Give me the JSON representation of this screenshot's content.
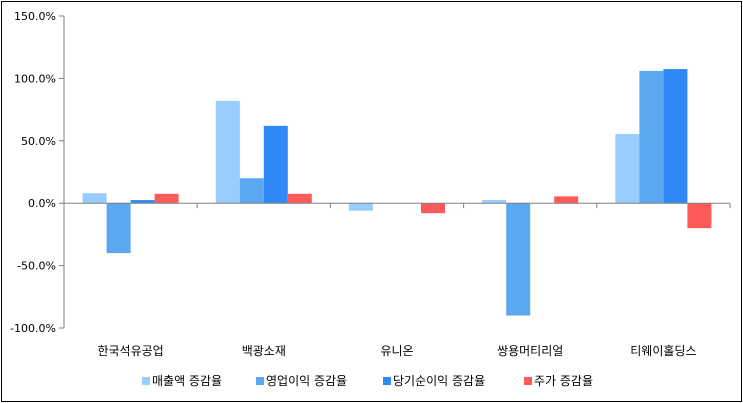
{
  "chart_data": {
    "type": "bar",
    "categories": [
      "한국석유공업",
      "백광소재",
      "유니온",
      "쌍용머티리얼",
      "티웨이홀딩스"
    ],
    "series": [
      {
        "name": "매출액 증감율",
        "color": "#99ccff",
        "values": [
          8.0,
          82.0,
          -6.0,
          2.5,
          55.5
        ]
      },
      {
        "name": "영업이익 증감율",
        "color": "#5ba8f0",
        "values": [
          -40.0,
          20.0,
          0.0,
          -90.0,
          106.0
        ]
      },
      {
        "name": "당기순이익 증감율",
        "color": "#2f8af7",
        "values": [
          2.5,
          62.0,
          0.0,
          0.0,
          107.5
        ]
      },
      {
        "name": "주가 증감율",
        "color": "#ff5a5a",
        "values": [
          7.5,
          7.5,
          -8.0,
          5.5,
          -20.0
        ]
      }
    ],
    "ylim": [
      -100,
      150
    ],
    "yticks": [
      -100,
      -50,
      0,
      50,
      100,
      150
    ],
    "ytick_labels": [
      "-100.0%",
      "-50.0%",
      "0.0%",
      "50.0%",
      "100.0%",
      "150.0%"
    ],
    "legend_position": "bottom",
    "grid": false
  }
}
